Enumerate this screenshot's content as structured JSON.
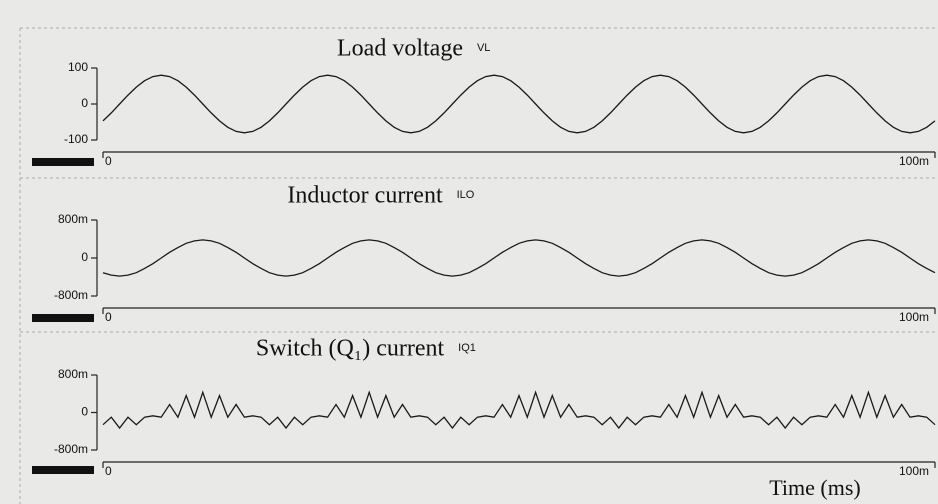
{
  "chart_data": [
    {
      "type": "line",
      "title": "Load voltage",
      "trace_label": "VL",
      "color": "#1a1a1a",
      "xlim": [
        0,
        100
      ],
      "xticks": [
        0,
        {
          "value": 100,
          "label": "100m"
        }
      ],
      "ylim": [
        -100,
        100
      ],
      "yticks": [
        100,
        0,
        -100
      ],
      "x": [
        0,
        1,
        2,
        3,
        4,
        5,
        6,
        7,
        8,
        9,
        10,
        11,
        12,
        13,
        14,
        15,
        16,
        17,
        18,
        19,
        20,
        21,
        22,
        23,
        24,
        25,
        26,
        27,
        28,
        29,
        30,
        31,
        32,
        33,
        34,
        35,
        36,
        37,
        38,
        39,
        40,
        41,
        42,
        43,
        44,
        45,
        46,
        47,
        48,
        49,
        50,
        51,
        52,
        53,
        54,
        55,
        56,
        57,
        58,
        59,
        60,
        61,
        62,
        63,
        64,
        65,
        66,
        67,
        68,
        69,
        70,
        71,
        72,
        73,
        74,
        75,
        76,
        77,
        78,
        79,
        80,
        81,
        82,
        83,
        84,
        85,
        86,
        87,
        88,
        89,
        90,
        91,
        92,
        93,
        94,
        95,
        96,
        97,
        98,
        99,
        100
      ],
      "values": [
        -47,
        -24.7,
        0,
        24.7,
        47,
        64.7,
        76.1,
        80,
        76.1,
        64.7,
        47,
        24.7,
        0,
        -24.7,
        -47,
        -64.7,
        -76.1,
        -80,
        -76.1,
        -64.7,
        -47,
        -24.7,
        0,
        24.7,
        47,
        64.7,
        76.1,
        80,
        76.1,
        64.7,
        47,
        24.7,
        0,
        -24.7,
        -47,
        -64.7,
        -76.1,
        -80,
        -76.1,
        -64.7,
        -47,
        -24.7,
        0,
        24.7,
        47,
        64.7,
        76.1,
        80,
        76.1,
        64.7,
        47,
        24.7,
        0,
        -24.7,
        -47,
        -64.7,
        -76.1,
        -80,
        -76.1,
        -64.7,
        -47,
        -24.7,
        0,
        24.7,
        47,
        64.7,
        76.1,
        80,
        76.1,
        64.7,
        47,
        24.7,
        0,
        -24.7,
        -47,
        -64.7,
        -76.1,
        -80,
        -76.1,
        -64.7,
        -47,
        -24.7,
        0,
        24.7,
        47,
        64.7,
        76.1,
        80,
        76.1,
        64.7,
        47,
        24.7,
        0,
        -24.7,
        -47,
        -64.7,
        -76.1,
        -80,
        -76.1,
        -64.7,
        -47
      ]
    },
    {
      "type": "line",
      "title": "Inductor current",
      "trace_label": "ILO",
      "color": "#1a1a1a",
      "xlim": [
        0,
        100
      ],
      "xticks": [
        0,
        {
          "value": 100,
          "label": "100m"
        }
      ],
      "ylim": [
        -0.8,
        0.8
      ],
      "yticks": [
        {
          "value": 0.8,
          "label": "800m"
        },
        0,
        {
          "value": -0.8,
          "label": "-800m"
        }
      ],
      "x": [
        0,
        1,
        2,
        3,
        4,
        5,
        6,
        7,
        8,
        9,
        10,
        11,
        12,
        13,
        14,
        15,
        16,
        17,
        18,
        19,
        20,
        21,
        22,
        23,
        24,
        25,
        26,
        27,
        28,
        29,
        30,
        31,
        32,
        33,
        34,
        35,
        36,
        37,
        38,
        39,
        40,
        41,
        42,
        43,
        44,
        45,
        46,
        47,
        48,
        49,
        50,
        51,
        52,
        53,
        54,
        55,
        56,
        57,
        58,
        59,
        60,
        61,
        62,
        63,
        64,
        65,
        66,
        67,
        68,
        69,
        70,
        71,
        72,
        73,
        74,
        75,
        76,
        77,
        78,
        79,
        80,
        81,
        82,
        83,
        84,
        85,
        86,
        87,
        88,
        89,
        90,
        91,
        92,
        93,
        94,
        95,
        96,
        97,
        98,
        99,
        100
      ],
      "values": [
        -0.31,
        -0.36,
        -0.38,
        -0.36,
        -0.31,
        -0.22,
        -0.12,
        0,
        0.12,
        0.22,
        0.31,
        0.36,
        0.38,
        0.36,
        0.31,
        0.22,
        0.12,
        0,
        -0.12,
        -0.22,
        -0.31,
        -0.36,
        -0.38,
        -0.36,
        -0.31,
        -0.22,
        -0.12,
        0,
        0.12,
        0.22,
        0.31,
        0.36,
        0.38,
        0.36,
        0.31,
        0.22,
        0.12,
        0,
        -0.12,
        -0.22,
        -0.31,
        -0.36,
        -0.38,
        -0.36,
        -0.31,
        -0.22,
        -0.12,
        0,
        0.12,
        0.22,
        0.31,
        0.36,
        0.38,
        0.36,
        0.31,
        0.22,
        0.12,
        0,
        -0.12,
        -0.22,
        -0.31,
        -0.36,
        -0.38,
        -0.36,
        -0.31,
        -0.22,
        -0.12,
        0,
        0.12,
        0.22,
        0.31,
        0.36,
        0.38,
        0.36,
        0.31,
        0.22,
        0.12,
        0,
        -0.12,
        -0.22,
        -0.31,
        -0.36,
        -0.38,
        -0.36,
        -0.31,
        -0.22,
        -0.12,
        0,
        0.12,
        0.22,
        0.31,
        0.36,
        0.38,
        0.36,
        0.31,
        0.22,
        0.12,
        0,
        -0.12,
        -0.22,
        -0.31
      ]
    },
    {
      "type": "line",
      "title": "Switch (Q₁) current",
      "trace_label": "IQ1",
      "color": "#1a1a1a",
      "xlim": [
        0,
        100
      ],
      "xticks": [
        0,
        {
          "value": 100,
          "label": "100m"
        }
      ],
      "ylim": [
        -0.8,
        0.8
      ],
      "yticks": [
        {
          "value": 0.8,
          "label": "800m"
        },
        0,
        {
          "value": -0.8,
          "label": "-800m"
        }
      ],
      "xlabel": "Time (ms)",
      "x": [
        0,
        1,
        2,
        3,
        4,
        5,
        6,
        7,
        8,
        9,
        10,
        11,
        12,
        13,
        14,
        15,
        16,
        17,
        18,
        19,
        20,
        21,
        22,
        23,
        24,
        25,
        26,
        27,
        28,
        29,
        30,
        31,
        32,
        33,
        34,
        35,
        36,
        37,
        38,
        39,
        40,
        41,
        42,
        43,
        44,
        45,
        46,
        47,
        48,
        49,
        50,
        51,
        52,
        53,
        54,
        55,
        56,
        57,
        58,
        59,
        60,
        61,
        62,
        63,
        64,
        65,
        66,
        67,
        68,
        69,
        70,
        71,
        72,
        73,
        74,
        75,
        76,
        77,
        78,
        79,
        80,
        81,
        82,
        83,
        84,
        85,
        86,
        87,
        88,
        89,
        90,
        91,
        92,
        93,
        94,
        95,
        96,
        97,
        98,
        99,
        100
      ],
      "values": [
        -0.26,
        -0.1,
        -0.33,
        -0.1,
        -0.26,
        -0.1,
        -0.07,
        -0.1,
        0.17,
        -0.1,
        0.36,
        -0.1,
        0.43,
        -0.1,
        0.36,
        -0.1,
        0.17,
        -0.1,
        -0.07,
        -0.1,
        -0.26,
        -0.1,
        -0.33,
        -0.1,
        -0.26,
        -0.1,
        -0.07,
        -0.1,
        0.17,
        -0.1,
        0.36,
        -0.1,
        0.43,
        -0.1,
        0.36,
        -0.1,
        0.17,
        -0.1,
        -0.07,
        -0.1,
        -0.26,
        -0.1,
        -0.33,
        -0.1,
        -0.26,
        -0.1,
        -0.07,
        -0.1,
        0.17,
        -0.1,
        0.36,
        -0.1,
        0.43,
        -0.1,
        0.36,
        -0.1,
        0.17,
        -0.1,
        -0.07,
        -0.1,
        -0.26,
        -0.1,
        -0.33,
        -0.1,
        -0.26,
        -0.1,
        -0.07,
        -0.1,
        0.17,
        -0.1,
        0.36,
        -0.1,
        0.43,
        -0.1,
        0.36,
        -0.1,
        0.17,
        -0.1,
        -0.07,
        -0.1,
        -0.26,
        -0.1,
        -0.33,
        -0.1,
        -0.26,
        -0.1,
        -0.07,
        -0.1,
        0.17,
        -0.1,
        0.36,
        -0.1,
        0.43,
        -0.1,
        0.36,
        -0.1,
        0.17,
        -0.1,
        -0.07,
        -0.1,
        -0.26
      ]
    }
  ]
}
